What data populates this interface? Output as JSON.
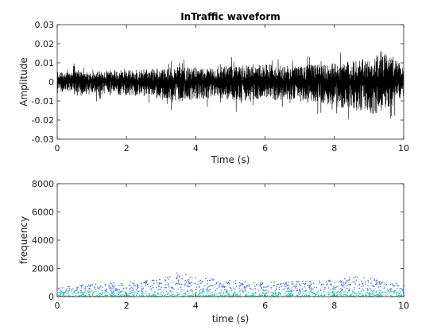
{
  "chart_data": [
    {
      "type": "line",
      "title": "InTraffic waveform",
      "xlabel": "Time (s)",
      "ylabel": "Amplitude",
      "xlim": [
        0,
        10
      ],
      "ylim": [
        -0.03,
        0.03
      ],
      "xticks": [
        0,
        2,
        4,
        6,
        8,
        10
      ],
      "yticks": [
        0.03,
        0.02,
        0.01,
        0,
        -0.01,
        -0.02,
        -0.03
      ],
      "xtick_labels": [
        "0",
        "2",
        "4",
        "6",
        "8",
        "10"
      ],
      "ytick_labels": [
        "0.03",
        "0.02",
        "0.01",
        "0",
        "-0.01",
        "-0.02",
        "-0.03"
      ],
      "grid": false,
      "line_color": "#000000",
      "envelope": {
        "t": [
          0,
          0.5,
          1,
          1.5,
          2,
          2.5,
          3,
          3.5,
          4,
          4.5,
          5,
          5.5,
          6,
          6.5,
          7,
          7.5,
          8,
          8.5,
          9,
          9.5,
          10
        ],
        "max": [
          0.008,
          0.009,
          0.008,
          0.009,
          0.01,
          0.01,
          0.011,
          0.013,
          0.012,
          0.012,
          0.013,
          0.014,
          0.014,
          0.013,
          0.014,
          0.015,
          0.016,
          0.018,
          0.02,
          0.024,
          0.014
        ],
        "min": [
          -0.008,
          -0.009,
          -0.01,
          -0.01,
          -0.011,
          -0.011,
          -0.014,
          -0.018,
          -0.014,
          -0.014,
          -0.015,
          -0.016,
          -0.016,
          -0.015,
          -0.016,
          -0.018,
          -0.02,
          -0.023,
          -0.028,
          -0.025,
          -0.012
        ]
      }
    },
    {
      "type": "scatter",
      "xlabel": "time (s)",
      "ylabel": "frequency",
      "xlim": [
        0,
        10
      ],
      "ylim": [
        0,
        8000
      ],
      "xticks": [
        0,
        2,
        4,
        6,
        8,
        10
      ],
      "yticks": [
        8000,
        6000,
        4000,
        2000,
        0
      ],
      "xtick_labels": [
        "0",
        "2",
        "4",
        "6",
        "8",
        "10"
      ],
      "ytick_labels": [
        "8000",
        "6000",
        "4000",
        "2000",
        "0"
      ],
      "grid": false,
      "colors": [
        "#3b5bdb",
        "#4a7fe0",
        "#34b8c8",
        "#2fc4a0"
      ],
      "max_frequency_profile": {
        "t": [
          0,
          1,
          2,
          3,
          3.4,
          4,
          5,
          6,
          7,
          8,
          8.5,
          9,
          10
        ],
        "f": [
          600,
          900,
          1000,
          1200,
          1800,
          1300,
          1200,
          1000,
          1100,
          1200,
          1400,
          1300,
          800
        ]
      }
    }
  ]
}
